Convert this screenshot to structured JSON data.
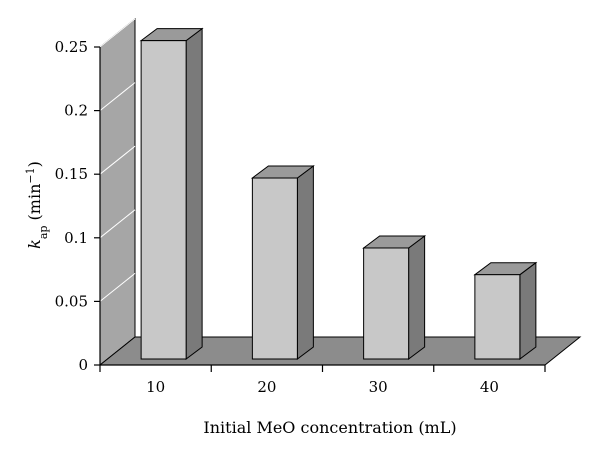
{
  "chart_data": {
    "type": "bar",
    "style": "3d",
    "categories": [
      "10",
      "20",
      "30",
      "40"
    ],
    "values": [
      0.255,
      0.147,
      0.092,
      0.071
    ],
    "ylim": [
      0,
      0.25
    ],
    "yticks": [
      "0",
      "0.05",
      "0.1",
      "0.15",
      "0.2",
      "0.25"
    ],
    "xlabel": "Initial MeO concentration (mL)",
    "ylabel": {
      "symbol": "k",
      "subscript": "ap",
      "unit": " (min",
      "superscript": "−1",
      "close": ")"
    },
    "grid": true,
    "colors": {
      "bar_front": "#c8c8c8",
      "bar_side": "#7a7a7a",
      "bar_top": "#9a9a9a",
      "wall": "#a6a6a6",
      "wall_side": "#bdbdbd",
      "floor": "#8c8c8c",
      "gridline": "#ffffff"
    }
  }
}
